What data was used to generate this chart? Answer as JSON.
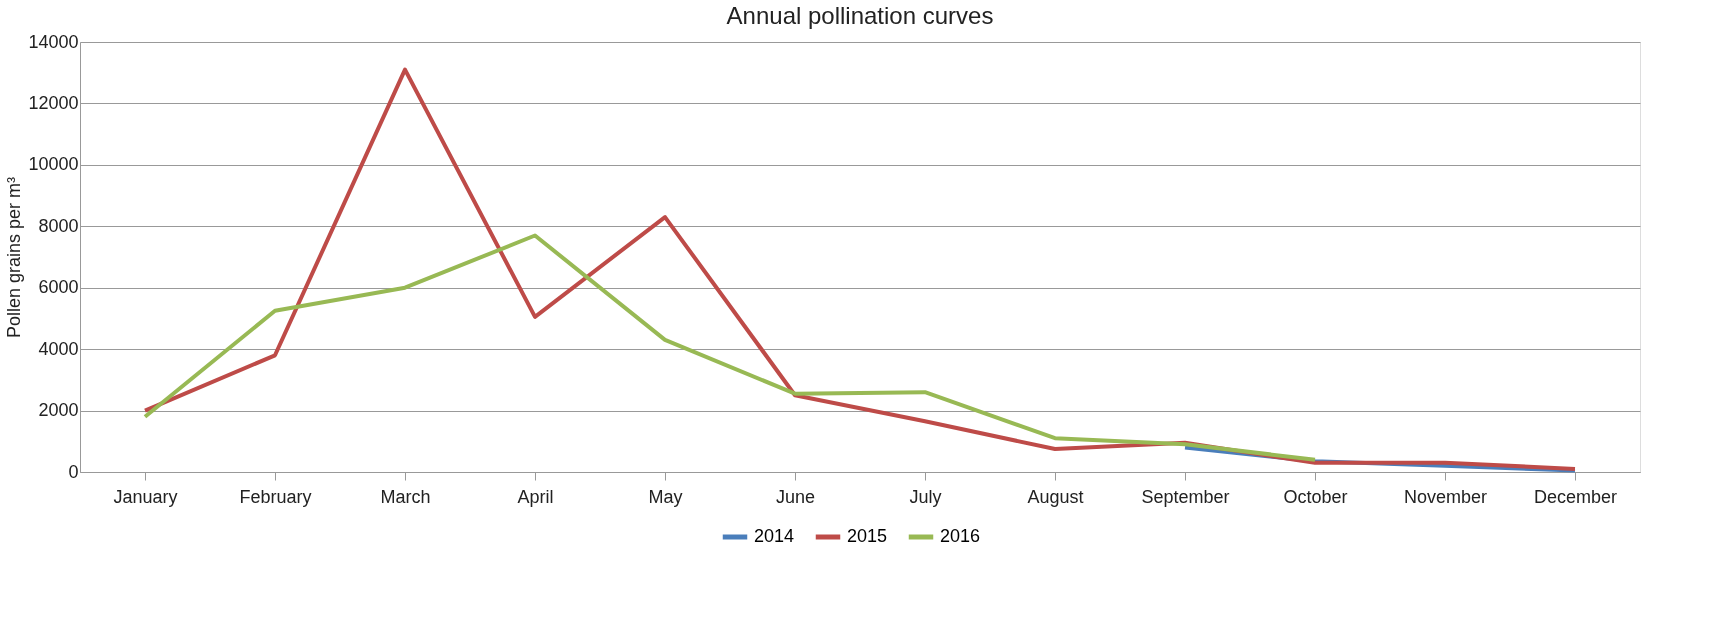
{
  "chart_data": {
    "type": "line",
    "title": "Annual pollination curves",
    "ylabel": "Pollen grains per m³",
    "categories": [
      "January",
      "February",
      "March",
      "April",
      "May",
      "June",
      "July",
      "August",
      "September",
      "October",
      "November",
      "December"
    ],
    "series": [
      {
        "name": "2014",
        "color": "#4a7ebb",
        "values": [
          null,
          null,
          null,
          null,
          null,
          null,
          null,
          null,
          800,
          350,
          200,
          50
        ]
      },
      {
        "name": "2015",
        "color": "#be4b48",
        "values": [
          2000,
          3800,
          13100,
          5050,
          8300,
          2500,
          1650,
          750,
          950,
          300,
          300,
          100
        ]
      },
      {
        "name": "2016",
        "color": "#98b954",
        "values": [
          1800,
          5250,
          6000,
          7700,
          4300,
          2550,
          2600,
          1100,
          900,
          400,
          null,
          null
        ]
      }
    ],
    "ylim": [
      0,
      14000
    ],
    "yticks": [
      0,
      2000,
      4000,
      6000,
      8000,
      10000,
      12000,
      14000
    ],
    "grid": "y",
    "legend": "bottom",
    "marker": "none",
    "line_style": "solid"
  }
}
